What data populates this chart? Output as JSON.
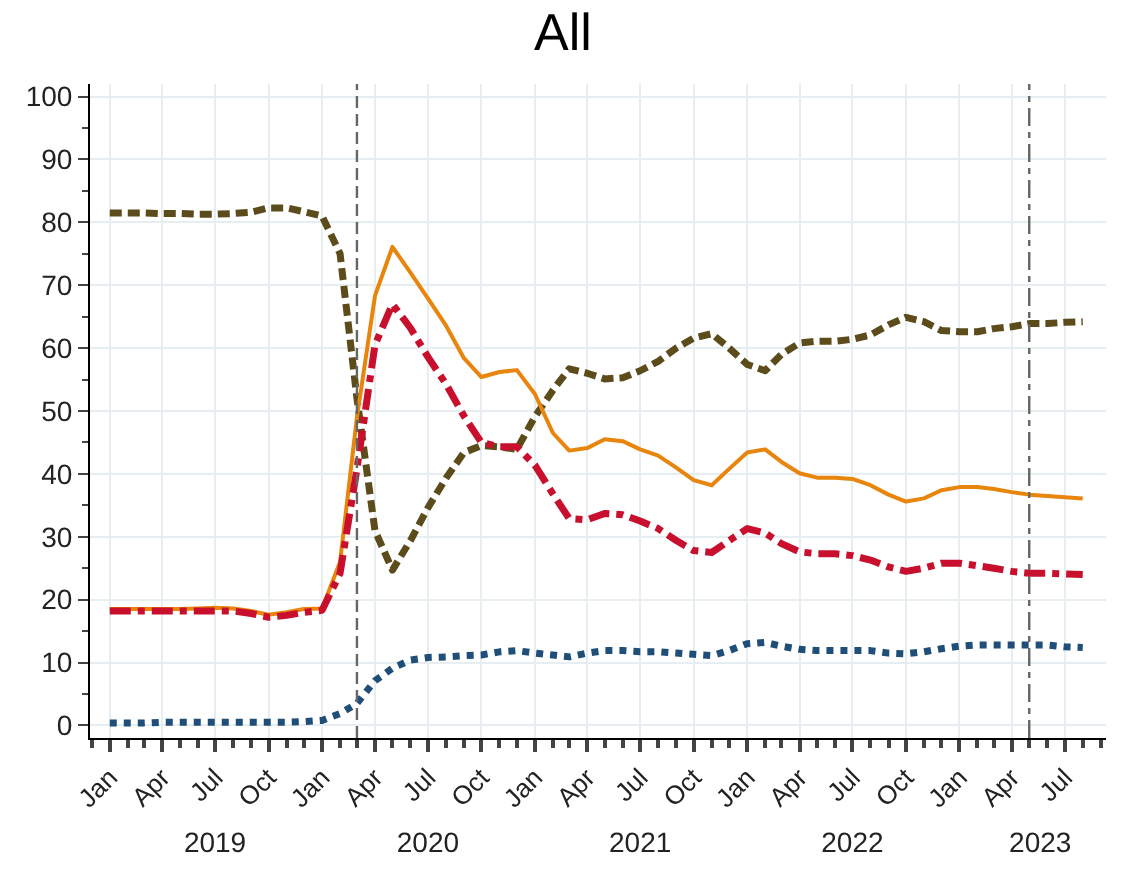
{
  "chart_data": {
    "type": "line",
    "title": "All",
    "x": [
      "2019-01",
      "2019-02",
      "2019-03",
      "2019-04",
      "2019-05",
      "2019-06",
      "2019-07",
      "2019-08",
      "2019-09",
      "2019-10",
      "2019-11",
      "2019-12",
      "2020-01",
      "2020-02",
      "2020-03",
      "2020-04",
      "2020-05",
      "2020-06",
      "2020-07",
      "2020-08",
      "2020-09",
      "2020-10",
      "2020-11",
      "2020-12",
      "2021-01",
      "2021-02",
      "2021-03",
      "2021-04",
      "2021-05",
      "2021-06",
      "2021-07",
      "2021-08",
      "2021-09",
      "2021-10",
      "2021-11",
      "2021-12",
      "2022-01",
      "2022-02",
      "2022-03",
      "2022-04",
      "2022-05",
      "2022-06",
      "2022-07",
      "2022-08",
      "2022-09",
      "2022-10",
      "2022-11",
      "2022-12",
      "2023-01",
      "2023-02",
      "2023-03",
      "2023-04",
      "2023-05",
      "2023-06",
      "2023-07",
      "2023-08"
    ],
    "series": [
      {
        "color": "#5c4b1b",
        "line_style": "dashed",
        "values": [
          81.5,
          81.5,
          81.5,
          81.4,
          81.4,
          81.3,
          81.3,
          81.4,
          81.6,
          82.3,
          82.3,
          81.7,
          81.0,
          75,
          52,
          31,
          24.7,
          29.4,
          34.6,
          39.3,
          43.4,
          44.5,
          44.3,
          43.9,
          49.1,
          53.3,
          56.7,
          56.0,
          55.1,
          55.3,
          56.4,
          57.9,
          60.0,
          61.6,
          62.3,
          60.0,
          57.4,
          56.4,
          59.0,
          60.8,
          61.1,
          61.1,
          61.4,
          62.1,
          63.7,
          64.9,
          64.2,
          62.8,
          62.6,
          62.6,
          63.1,
          63.4,
          63.9,
          63.9,
          64.1,
          64.2
        ]
      },
      {
        "color": "#e8850c",
        "line_style": "solid",
        "values": [
          18.5,
          18.5,
          18.5,
          18.5,
          18.5,
          18.6,
          18.7,
          18.6,
          18.2,
          17.6,
          18.0,
          18.5,
          18.6,
          26,
          49,
          68.3,
          76.1,
          72.0,
          67.9,
          63.6,
          58.4,
          55.4,
          56.2,
          56.5,
          52.7,
          46.5,
          43.7,
          44.1,
          45.5,
          45.2,
          43.9,
          42.9,
          41.0,
          39.0,
          38.2,
          40.8,
          43.4,
          43.9,
          41.9,
          40.1,
          39.4,
          39.4,
          39.2,
          38.2,
          36.7,
          35.6,
          36.1,
          37.4,
          37.9,
          37.9,
          37.6,
          37.1,
          36.7,
          36.5,
          36.3,
          36.1
        ]
      },
      {
        "color": "#c8102e",
        "line_style": "dashdot",
        "values": [
          18.2,
          18.2,
          18.2,
          18.2,
          18.2,
          18.2,
          18.2,
          18.2,
          17.8,
          17.2,
          17.5,
          18.0,
          18.3,
          24.2,
          40.8,
          60.5,
          67.0,
          63.2,
          58.6,
          54.3,
          49.2,
          45.0,
          44.3,
          44.3,
          41.4,
          36.8,
          32.9,
          32.7,
          33.7,
          33.5,
          32.5,
          31.3,
          29.4,
          27.8,
          27.5,
          29.4,
          31.3,
          30.6,
          28.9,
          27.6,
          27.3,
          27.3,
          27.0,
          26.3,
          25.2,
          24.5,
          25.0,
          25.8,
          25.8,
          25.4,
          25.0,
          24.5,
          24.2,
          24.2,
          24.1,
          24.0
        ]
      },
      {
        "color": "#1f4e79",
        "line_style": "dotted",
        "values": [
          0.4,
          0.4,
          0.4,
          0.5,
          0.5,
          0.5,
          0.5,
          0.5,
          0.5,
          0.5,
          0.5,
          0.6,
          0.8,
          1.9,
          3.5,
          7.1,
          9.1,
          10.4,
          10.8,
          10.9,
          11.1,
          11.2,
          11.7,
          11.9,
          11.5,
          11.2,
          10.9,
          11.5,
          11.9,
          11.9,
          11.7,
          11.7,
          11.5,
          11.3,
          11.1,
          11.9,
          13.0,
          13.2,
          12.6,
          12.1,
          11.9,
          11.9,
          11.9,
          11.9,
          11.5,
          11.4,
          11.7,
          12.2,
          12.6,
          12.8,
          12.8,
          12.8,
          12.8,
          12.8,
          12.5,
          12.4
        ]
      }
    ],
    "xlim": [
      "2018-11-28",
      "2023-09-10"
    ],
    "xticks": [
      {
        "value": "2019-01-01",
        "label": "Jan"
      },
      {
        "value": "2019-04-01",
        "label": "Apr"
      },
      {
        "value": "2019-07-01",
        "label": "Jul"
      },
      {
        "value": "2019-10-01",
        "label": "Oct"
      },
      {
        "value": "2020-01-01",
        "label": "Jan"
      },
      {
        "value": "2020-04-01",
        "label": "Apr"
      },
      {
        "value": "2020-07-01",
        "label": "Jul"
      },
      {
        "value": "2020-10-01",
        "label": "Oct"
      },
      {
        "value": "2021-01-01",
        "label": "Jan"
      },
      {
        "value": "2021-04-01",
        "label": "Apr"
      },
      {
        "value": "2021-07-01",
        "label": "Jul"
      },
      {
        "value": "2021-10-01",
        "label": "Oct"
      },
      {
        "value": "2022-01-01",
        "label": "Jan"
      },
      {
        "value": "2022-04-01",
        "label": "Apr"
      },
      {
        "value": "2022-07-01",
        "label": "Jul"
      },
      {
        "value": "2022-10-01",
        "label": "Oct"
      },
      {
        "value": "2023-01-01",
        "label": "Jan"
      },
      {
        "value": "2023-04-01",
        "label": "Apr"
      },
      {
        "value": "2023-07-01",
        "label": "Jul"
      }
    ],
    "x2lim": [
      "2018-11-28",
      "2023-09-10"
    ],
    "x2ticks": [
      {
        "value": "2019-07-01",
        "label": "2019"
      },
      {
        "value": "2020-07-01",
        "label": "2020"
      },
      {
        "value": "2021-07-01",
        "label": "2021"
      },
      {
        "value": "2022-07-01",
        "label": "2022"
      },
      {
        "value": "2023-05-20",
        "label": "2023"
      }
    ],
    "ylim": [
      -2,
      102
    ],
    "yticks": [
      0,
      10,
      20,
      30,
      40,
      50,
      60,
      70,
      80,
      90,
      100
    ],
    "ref_lines": [
      {
        "axis": "x",
        "value": "2020-03-01",
        "color": "#666666",
        "line_style": "dashed"
      },
      {
        "axis": "x",
        "value": "2023-05-01",
        "color": "#666666",
        "line_style": "dashdot"
      }
    ],
    "grid": true,
    "marker": "none"
  }
}
